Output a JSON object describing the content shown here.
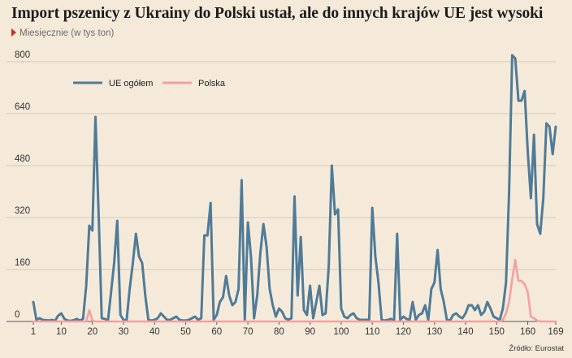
{
  "header": {
    "title": "Import pszenicy z Ukrainy do Polski ustał, ale do innych krajów UE jest wysoki",
    "subtitle": "Miesięcznie (w tys ton)"
  },
  "footer": {
    "source": "Źródło: Eurostat"
  },
  "colors": {
    "background": "#f5ead9",
    "ue": "#4f7b98",
    "polska": "#f4a0a0",
    "grid": "#d4c9b8",
    "marker": "#d42a1e"
  },
  "chart_data": {
    "type": "line",
    "xlabel": "",
    "ylabel": "",
    "xlim": [
      1,
      169
    ],
    "ylim": [
      0,
      840
    ],
    "x_ticks": [
      1,
      10,
      20,
      30,
      40,
      50,
      60,
      70,
      80,
      90,
      100,
      110,
      120,
      130,
      140,
      150,
      160,
      169
    ],
    "y_ticks": [
      0,
      160,
      320,
      480,
      640,
      800
    ],
    "grid": true,
    "legend_position": "top-left",
    "series": [
      {
        "name": "UE ogółem",
        "color": "#4f7b98",
        "points": [
          [
            1,
            60
          ],
          [
            2,
            5
          ],
          [
            3,
            10
          ],
          [
            4,
            5
          ],
          [
            5,
            4
          ],
          [
            6,
            3
          ],
          [
            7,
            5
          ],
          [
            8,
            2
          ],
          [
            9,
            18
          ],
          [
            10,
            25
          ],
          [
            11,
            8
          ],
          [
            12,
            3
          ],
          [
            13,
            2
          ],
          [
            14,
            4
          ],
          [
            15,
            8
          ],
          [
            16,
            3
          ],
          [
            17,
            8
          ],
          [
            18,
            110
          ],
          [
            19,
            295
          ],
          [
            20,
            280
          ],
          [
            21,
            630
          ],
          [
            22,
            330
          ],
          [
            23,
            10
          ],
          [
            24,
            8
          ],
          [
            25,
            3
          ],
          [
            26,
            90
          ],
          [
            27,
            180
          ],
          [
            28,
            310
          ],
          [
            29,
            20
          ],
          [
            30,
            5
          ],
          [
            31,
            3
          ],
          [
            32,
            100
          ],
          [
            33,
            180
          ],
          [
            34,
            270
          ],
          [
            35,
            200
          ],
          [
            36,
            180
          ],
          [
            37,
            80
          ],
          [
            38,
            5
          ],
          [
            39,
            3
          ],
          [
            40,
            5
          ],
          [
            41,
            10
          ],
          [
            42,
            25
          ],
          [
            43,
            15
          ],
          [
            44,
            5
          ],
          [
            45,
            5
          ],
          [
            46,
            10
          ],
          [
            47,
            15
          ],
          [
            48,
            5
          ],
          [
            49,
            3
          ],
          [
            50,
            3
          ],
          [
            51,
            5
          ],
          [
            52,
            10
          ],
          [
            53,
            15
          ],
          [
            54,
            5
          ],
          [
            55,
            10
          ],
          [
            56,
            265
          ],
          [
            57,
            265
          ],
          [
            58,
            365
          ],
          [
            59,
            5
          ],
          [
            60,
            20
          ],
          [
            61,
            60
          ],
          [
            62,
            75
          ],
          [
            63,
            140
          ],
          [
            64,
            80
          ],
          [
            65,
            50
          ],
          [
            66,
            60
          ],
          [
            67,
            100
          ],
          [
            68,
            435
          ],
          [
            69,
            5
          ],
          [
            70,
            305
          ],
          [
            71,
            200
          ],
          [
            72,
            10
          ],
          [
            73,
            80
          ],
          [
            74,
            210
          ],
          [
            75,
            300
          ],
          [
            76,
            230
          ],
          [
            77,
            100
          ],
          [
            78,
            50
          ],
          [
            79,
            15
          ],
          [
            80,
            40
          ],
          [
            81,
            30
          ],
          [
            82,
            10
          ],
          [
            83,
            5
          ],
          [
            84,
            10
          ],
          [
            85,
            385
          ],
          [
            86,
            80
          ],
          [
            87,
            260
          ],
          [
            88,
            35
          ],
          [
            89,
            20
          ],
          [
            90,
            110
          ],
          [
            91,
            10
          ],
          [
            92,
            60
          ],
          [
            93,
            110
          ],
          [
            94,
            20
          ],
          [
            95,
            25
          ],
          [
            96,
            170
          ],
          [
            97,
            480
          ],
          [
            98,
            330
          ],
          [
            99,
            345
          ],
          [
            100,
            40
          ],
          [
            101,
            15
          ],
          [
            102,
            10
          ],
          [
            103,
            20
          ],
          [
            104,
            25
          ],
          [
            105,
            10
          ],
          [
            106,
            5
          ],
          [
            107,
            5
          ],
          [
            108,
            5
          ],
          [
            109,
            5
          ],
          [
            110,
            350
          ],
          [
            111,
            200
          ],
          [
            112,
            120
          ],
          [
            113,
            5
          ],
          [
            114,
            3
          ],
          [
            115,
            5
          ],
          [
            116,
            8
          ],
          [
            117,
            3
          ],
          [
            118,
            270
          ],
          [
            119,
            5
          ],
          [
            120,
            15
          ],
          [
            121,
            8
          ],
          [
            122,
            5
          ],
          [
            123,
            60
          ],
          [
            124,
            5
          ],
          [
            125,
            20
          ],
          [
            126,
            25
          ],
          [
            127,
            50
          ],
          [
            128,
            5
          ],
          [
            129,
            100
          ],
          [
            130,
            120
          ],
          [
            131,
            220
          ],
          [
            132,
            100
          ],
          [
            133,
            60
          ],
          [
            134,
            5
          ],
          [
            135,
            3
          ],
          [
            136,
            20
          ],
          [
            137,
            25
          ],
          [
            138,
            15
          ],
          [
            139,
            10
          ],
          [
            140,
            25
          ],
          [
            141,
            50
          ],
          [
            142,
            50
          ],
          [
            143,
            35
          ],
          [
            144,
            50
          ],
          [
            145,
            20
          ],
          [
            146,
            30
          ],
          [
            147,
            60
          ],
          [
            148,
            40
          ],
          [
            149,
            15
          ],
          [
            150,
            10
          ],
          [
            151,
            5
          ],
          [
            152,
            40
          ],
          [
            153,
            120
          ],
          [
            154,
            400
          ],
          [
            155,
            820
          ],
          [
            156,
            810
          ],
          [
            157,
            680
          ],
          [
            158,
            680
          ],
          [
            159,
            710
          ],
          [
            160,
            520
          ],
          [
            161,
            380
          ],
          [
            162,
            575
          ],
          [
            163,
            300
          ],
          [
            164,
            270
          ],
          [
            165,
            380
          ],
          [
            166,
            610
          ],
          [
            167,
            600
          ],
          [
            168,
            515
          ],
          [
            169,
            600
          ]
        ]
      },
      {
        "name": "Polska",
        "color": "#f4a0a0",
        "points": [
          [
            1,
            0
          ],
          [
            18,
            0
          ],
          [
            19,
            35
          ],
          [
            20,
            3
          ],
          [
            21,
            0
          ],
          [
            40,
            0
          ],
          [
            60,
            0
          ],
          [
            80,
            0
          ],
          [
            100,
            0
          ],
          [
            120,
            0
          ],
          [
            140,
            0
          ],
          [
            151,
            0
          ],
          [
            152,
            5
          ],
          [
            153,
            25
          ],
          [
            154,
            60
          ],
          [
            155,
            130
          ],
          [
            156,
            190
          ],
          [
            157,
            125
          ],
          [
            158,
            125
          ],
          [
            159,
            115
          ],
          [
            160,
            90
          ],
          [
            161,
            15
          ],
          [
            162,
            10
          ],
          [
            163,
            3
          ],
          [
            164,
            0
          ],
          [
            169,
            0
          ]
        ]
      }
    ]
  }
}
